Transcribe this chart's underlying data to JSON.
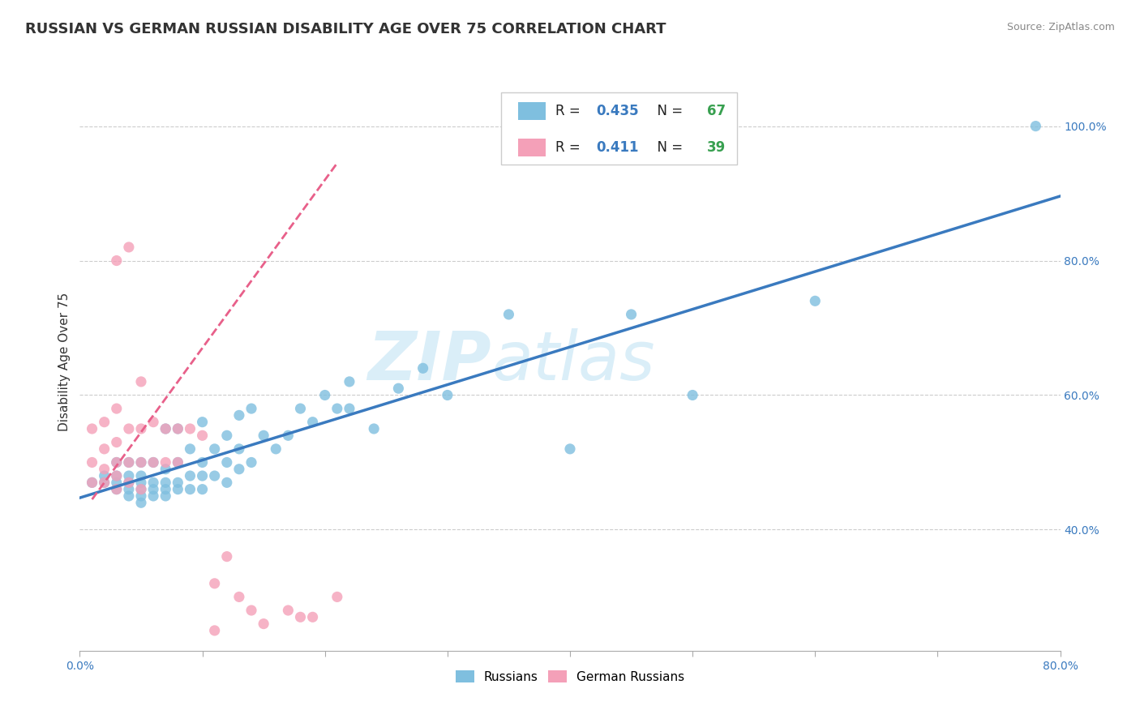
{
  "title": "RUSSIAN VS GERMAN RUSSIAN DISABILITY AGE OVER 75 CORRELATION CHART",
  "source": "Source: ZipAtlas.com",
  "ylabel": "Disability Age Over 75",
  "xlim": [
    0.0,
    0.8
  ],
  "ylim": [
    0.22,
    1.08
  ],
  "xticks": [
    0.0,
    0.1,
    0.2,
    0.3,
    0.4,
    0.5,
    0.6,
    0.7,
    0.8
  ],
  "xticklabels": [
    "0.0%",
    "",
    "",
    "",
    "",
    "",
    "",
    "",
    "80.0%"
  ],
  "yticks_right": [
    0.4,
    0.6,
    0.8,
    1.0
  ],
  "ytick_labels_right": [
    "40.0%",
    "60.0%",
    "80.0%",
    "100.0%"
  ],
  "russian_R": 0.435,
  "russian_N": 67,
  "german_russian_R": 0.411,
  "german_russian_N": 39,
  "blue_color": "#7fbfdf",
  "pink_color": "#f4a0b8",
  "blue_line_color": "#3a7abf",
  "pink_line_color": "#e8608a",
  "watermark_color": "#daeef8",
  "legend_R_color": "#3a7abf",
  "legend_N_color": "#38a050",
  "russians_scatter_x": [
    0.01,
    0.02,
    0.02,
    0.03,
    0.03,
    0.03,
    0.03,
    0.04,
    0.04,
    0.04,
    0.04,
    0.04,
    0.05,
    0.05,
    0.05,
    0.05,
    0.05,
    0.05,
    0.06,
    0.06,
    0.06,
    0.06,
    0.07,
    0.07,
    0.07,
    0.07,
    0.07,
    0.08,
    0.08,
    0.08,
    0.08,
    0.09,
    0.09,
    0.09,
    0.1,
    0.1,
    0.1,
    0.1,
    0.11,
    0.11,
    0.12,
    0.12,
    0.12,
    0.13,
    0.13,
    0.13,
    0.14,
    0.14,
    0.15,
    0.16,
    0.17,
    0.18,
    0.19,
    0.2,
    0.21,
    0.22,
    0.22,
    0.24,
    0.26,
    0.28,
    0.3,
    0.35,
    0.4,
    0.45,
    0.5,
    0.6,
    0.78
  ],
  "russians_scatter_y": [
    0.47,
    0.47,
    0.48,
    0.46,
    0.47,
    0.48,
    0.5,
    0.45,
    0.46,
    0.47,
    0.48,
    0.5,
    0.44,
    0.45,
    0.46,
    0.47,
    0.48,
    0.5,
    0.45,
    0.46,
    0.47,
    0.5,
    0.45,
    0.46,
    0.47,
    0.49,
    0.55,
    0.46,
    0.47,
    0.5,
    0.55,
    0.46,
    0.48,
    0.52,
    0.46,
    0.48,
    0.5,
    0.56,
    0.48,
    0.52,
    0.47,
    0.5,
    0.54,
    0.49,
    0.52,
    0.57,
    0.5,
    0.58,
    0.54,
    0.52,
    0.54,
    0.58,
    0.56,
    0.6,
    0.58,
    0.58,
    0.62,
    0.55,
    0.61,
    0.64,
    0.6,
    0.72,
    0.52,
    0.72,
    0.6,
    0.74,
    1.0
  ],
  "german_scatter_x": [
    0.01,
    0.01,
    0.01,
    0.02,
    0.02,
    0.02,
    0.02,
    0.03,
    0.03,
    0.03,
    0.03,
    0.03,
    0.03,
    0.04,
    0.04,
    0.04,
    0.04,
    0.05,
    0.05,
    0.05,
    0.05,
    0.06,
    0.06,
    0.07,
    0.07,
    0.08,
    0.08,
    0.09,
    0.1,
    0.11,
    0.11,
    0.12,
    0.13,
    0.14,
    0.15,
    0.17,
    0.18,
    0.19,
    0.21
  ],
  "german_scatter_y": [
    0.47,
    0.5,
    0.55,
    0.47,
    0.49,
    0.52,
    0.56,
    0.46,
    0.48,
    0.5,
    0.53,
    0.58,
    0.8,
    0.47,
    0.5,
    0.55,
    0.82,
    0.46,
    0.5,
    0.55,
    0.62,
    0.5,
    0.56,
    0.5,
    0.55,
    0.5,
    0.55,
    0.55,
    0.54,
    0.25,
    0.32,
    0.36,
    0.3,
    0.28,
    0.26,
    0.28,
    0.27,
    0.27,
    0.3
  ],
  "title_fontsize": 13,
  "axis_label_fontsize": 11,
  "tick_fontsize": 10
}
